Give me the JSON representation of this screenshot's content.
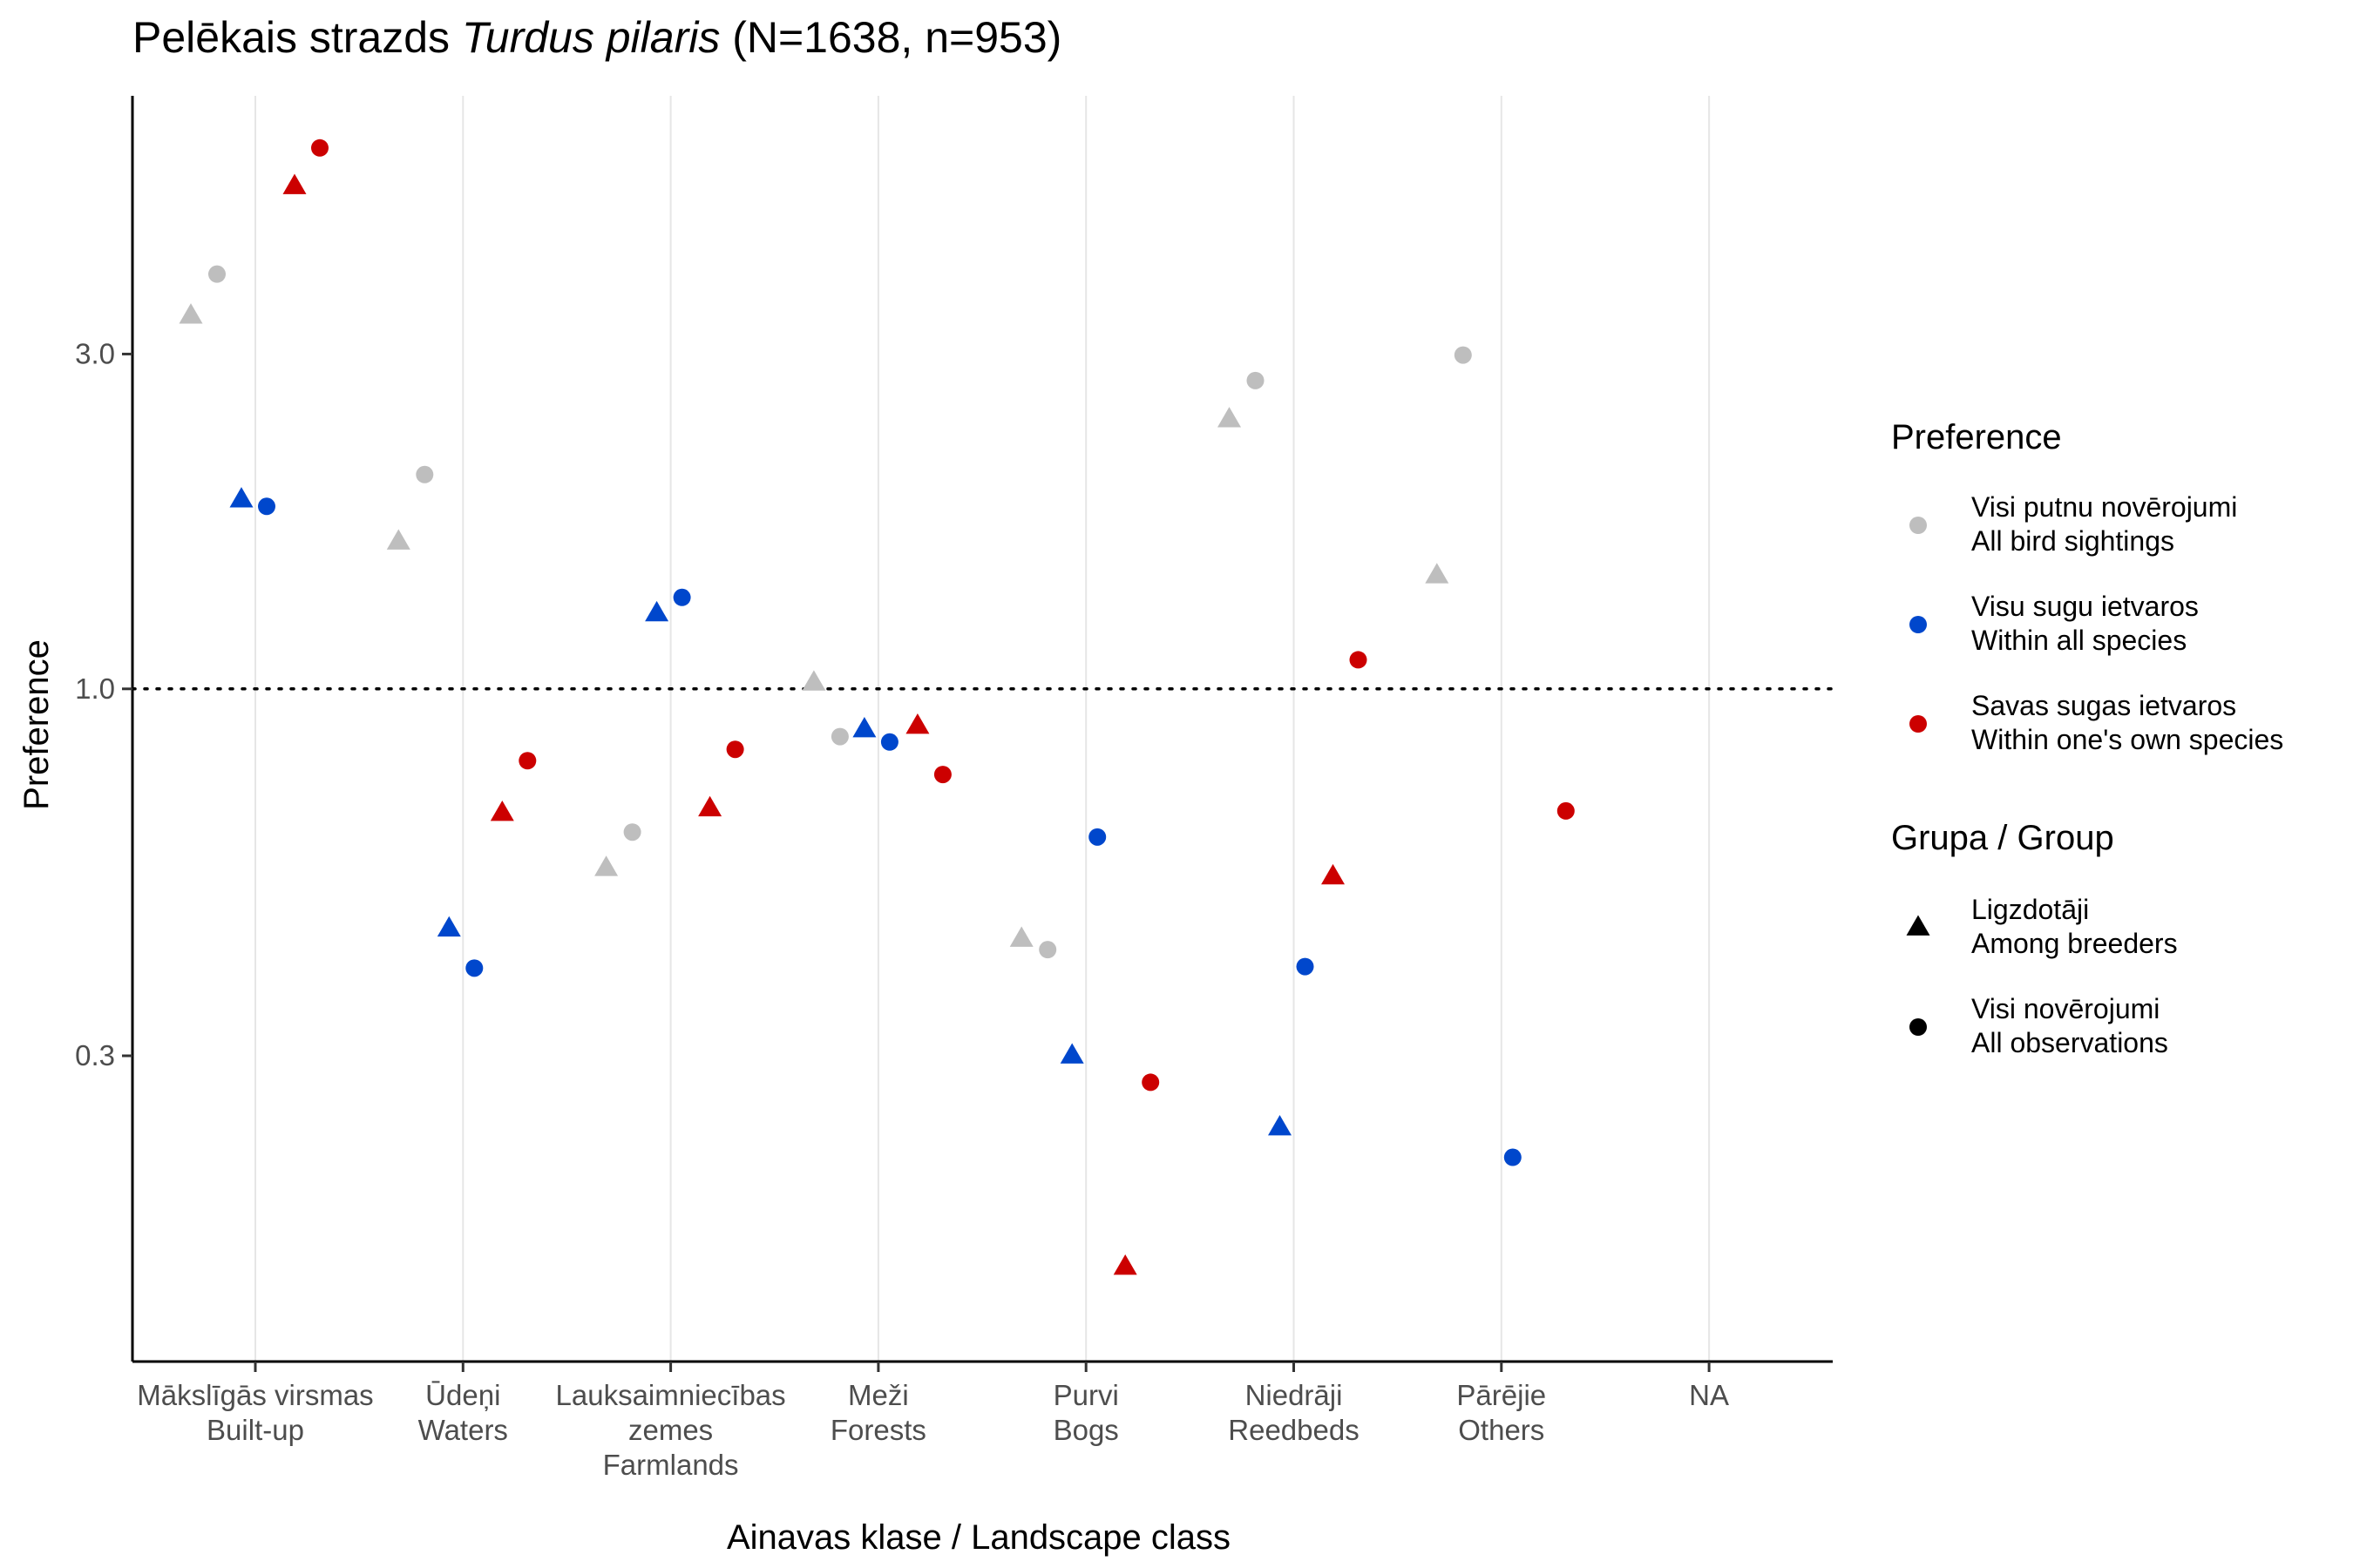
{
  "chart_data": {
    "type": "scatter",
    "title": {
      "prefix": "Pelēkais strazds ",
      "species": "Turdus pilaris",
      "suffix": " (N=1638, n=953)"
    },
    "xlabel": "Ainavas klase / Landscape class",
    "ylabel": "Preference",
    "y_scale": "log",
    "ylim": [
      0.11,
      7.0
    ],
    "y_ticks": [
      {
        "value": 0.3,
        "label": "0.3"
      },
      {
        "value": 1.0,
        "label": "1.0"
      },
      {
        "value": 3.0,
        "label": "3.0"
      }
    ],
    "reference_line": {
      "value": 1.0,
      "style": "dotted"
    },
    "categories": [
      {
        "lines": [
          "Mākslīgās virsmas",
          "Built-up"
        ]
      },
      {
        "lines": [
          "Ūdeņi",
          "Waters"
        ]
      },
      {
        "lines": [
          "Lauksaimniecības",
          "zemes",
          "Farmlands"
        ]
      },
      {
        "lines": [
          "Meži",
          "Forests"
        ]
      },
      {
        "lines": [
          "Purvi",
          "Bogs"
        ]
      },
      {
        "lines": [
          "Niedrāji",
          "Reedbeds"
        ]
      },
      {
        "lines": [
          "Pārējie",
          "Others"
        ]
      },
      {
        "lines": [
          "NA"
        ]
      }
    ],
    "grid": {
      "vertical_major": true,
      "horizontal": false
    },
    "legend_placement": "right",
    "colors": {
      "all_bird_sightings": "#bebebe",
      "within_all_species": "#0047cc",
      "within_own_species": "#cc0000"
    },
    "series": [
      {
        "preference": "all_bird_sightings",
        "group": "breeders",
        "values": [
          3.4,
          1.62,
          0.555,
          1.02,
          0.44,
          2.42,
          1.45,
          null
        ]
      },
      {
        "preference": "all_bird_sightings",
        "group": "all",
        "values": [
          3.9,
          2.02,
          0.625,
          0.855,
          0.425,
          2.75,
          2.99,
          null
        ]
      },
      {
        "preference": "within_all_species",
        "group": "breeders",
        "values": [
          1.86,
          0.455,
          1.28,
          0.875,
          0.3,
          0.237,
          null,
          null
        ]
      },
      {
        "preference": "within_all_species",
        "group": "all",
        "values": [
          1.82,
          0.4,
          1.35,
          0.84,
          0.615,
          0.402,
          0.215,
          null
        ]
      },
      {
        "preference": "within_own_species",
        "group": "breeders",
        "values": [
          5.2,
          0.665,
          0.675,
          0.885,
          0.15,
          0.54,
          null,
          null
        ]
      },
      {
        "preference": "within_own_species",
        "group": "all",
        "values": [
          5.9,
          0.79,
          0.82,
          0.755,
          0.275,
          1.1,
          0.67,
          null
        ]
      }
    ],
    "legend": {
      "preference": {
        "title": "Preference",
        "items": [
          {
            "key": "all_bird_sightings",
            "line1": "Visi putnu novērojumi",
            "line2": "All bird sightings"
          },
          {
            "key": "within_all_species",
            "line1": "Visu sugu ietvaros",
            "line2": "Within all species"
          },
          {
            "key": "within_own_species",
            "line1": "Savas sugas ietvaros",
            "line2": "Within one's own species"
          }
        ]
      },
      "group": {
        "title": "Grupa / Group",
        "items": [
          {
            "key": "breeders",
            "shape": "triangle",
            "line1": "Ligzdotāji",
            "line2": "Among breeders"
          },
          {
            "key": "all",
            "shape": "circle",
            "line1": "Visi novērojumi",
            "line2": "All observations"
          }
        ]
      }
    }
  }
}
